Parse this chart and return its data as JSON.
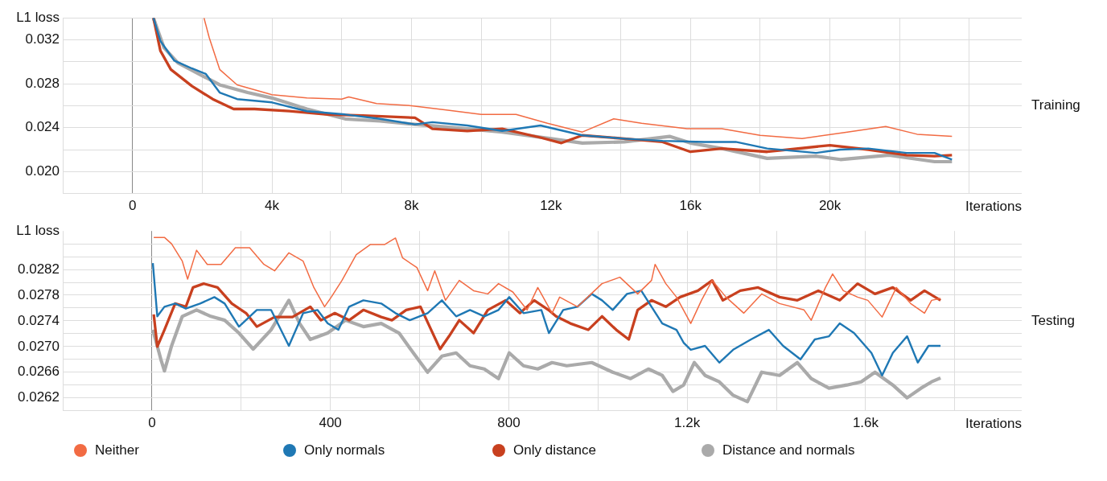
{
  "chart_data": [
    {
      "type": "line",
      "annotations": [
        "Training"
      ],
      "xlabel": "Iterations",
      "ylabel": "L1 loss",
      "grid": true,
      "legend": false,
      "xlim": [
        -2000,
        25500
      ],
      "ylim": [
        0.018,
        0.034
      ],
      "xticks": [
        {
          "value": -2000,
          "label": null
        },
        0,
        {
          "value": 2000,
          "label": null
        },
        {
          "value": 4000,
          "label": "4k"
        },
        {
          "value": 6000,
          "label": null
        },
        {
          "value": 8000,
          "label": "8k"
        },
        {
          "value": 10000,
          "label": null
        },
        {
          "value": 12000,
          "label": "12k"
        },
        {
          "value": 14000,
          "label": null
        },
        {
          "value": 16000,
          "label": "16k"
        },
        {
          "value": 18000,
          "label": null
        },
        {
          "value": 20000,
          "label": "20k"
        },
        {
          "value": 22000,
          "label": null
        },
        {
          "value": 24000,
          "label": null
        }
      ],
      "yticks": [
        {
          "value": 0.018,
          "label": null
        },
        {
          "value": 0.02,
          "label": "0.020"
        },
        {
          "value": 0.022,
          "label": null
        },
        0.024,
        {
          "value": 0.026,
          "label": null
        },
        0.028,
        {
          "value": 0.03,
          "label": null
        },
        0.032,
        {
          "value": 0.034,
          "label": null
        }
      ],
      "series": [
        {
          "color": "#f26b43",
          "x": [
            2050,
            2200,
            2500,
            3000,
            4000,
            5000,
            6000,
            6200,
            7000,
            8000,
            9000,
            10000,
            11000,
            11900,
            12900,
            13800,
            14600,
            15900,
            16900,
            18000,
            19200,
            20500,
            21600,
            22500,
            23500
          ],
          "values": [
            0.034,
            0.0322,
            0.0293,
            0.0279,
            0.027,
            0.0267,
            0.0266,
            0.0268,
            0.0262,
            0.026,
            0.0256,
            0.0252,
            0.0252,
            0.0244,
            0.0236,
            0.0248,
            0.0244,
            0.0239,
            0.0239,
            0.0233,
            0.023,
            0.0236,
            0.0241,
            0.0234,
            0.0232
          ]
        },
        {
          "color": "#1f78b4",
          "x": [
            600,
            800,
            1200,
            1700,
            2100,
            2500,
            3000,
            4000,
            5000,
            6100,
            7100,
            8100,
            8600,
            9600,
            10600,
            11700,
            12900,
            14100,
            15200,
            16400,
            17300,
            18200,
            19600,
            20300,
            21100,
            22200,
            23000,
            23500
          ],
          "values": [
            0.034,
            0.0319,
            0.0301,
            0.0294,
            0.0289,
            0.0272,
            0.0266,
            0.0263,
            0.0255,
            0.0252,
            0.0248,
            0.0243,
            0.0245,
            0.0242,
            0.0237,
            0.0242,
            0.0233,
            0.023,
            0.0228,
            0.0227,
            0.0227,
            0.0221,
            0.0217,
            0.022,
            0.0221,
            0.0217,
            0.0217,
            0.0211
          ]
        },
        {
          "color": "#c8401f",
          "x": [
            600,
            800,
            1100,
            1700,
            2300,
            2900,
            3500,
            4500,
            5600,
            6600,
            8100,
            8600,
            9600,
            10600,
            11700,
            12300,
            12900,
            14100,
            15200,
            16000,
            16900,
            18200,
            20000,
            21100,
            22200,
            23000,
            23500
          ],
          "values": [
            0.034,
            0.031,
            0.0293,
            0.0278,
            0.0266,
            0.0257,
            0.0257,
            0.0255,
            0.0252,
            0.0251,
            0.0249,
            0.0239,
            0.0237,
            0.0239,
            0.0231,
            0.0226,
            0.0233,
            0.023,
            0.0227,
            0.0218,
            0.0221,
            0.0218,
            0.0224,
            0.022,
            0.0215,
            0.0214,
            0.0215
          ]
        },
        {
          "color": "#aaaaaa",
          "x": [
            600,
            900,
            1300,
            1900,
            2500,
            3300,
            4000,
            5000,
            6100,
            7100,
            8100,
            9600,
            10600,
            12000,
            12900,
            14100,
            15400,
            16000,
            16900,
            18200,
            19600,
            20300,
            21700,
            23000,
            23500
          ],
          "values": [
            0.034,
            0.0313,
            0.0299,
            0.0289,
            0.0279,
            0.0272,
            0.0267,
            0.0257,
            0.0248,
            0.0246,
            0.0243,
            0.0239,
            0.0236,
            0.023,
            0.0226,
            0.0227,
            0.0232,
            0.0226,
            0.0221,
            0.0212,
            0.0214,
            0.0211,
            0.0215,
            0.0209,
            0.0209
          ]
        }
      ]
    },
    {
      "type": "line",
      "annotations": [
        "Testing"
      ],
      "xlabel": "Iterations",
      "ylabel": "L1 loss",
      "grid": true,
      "legend": "bottom",
      "xlim": [
        -200,
        1950
      ],
      "ylim": [
        0.026,
        0.0288
      ],
      "xticks": [
        {
          "value": -200,
          "label": null
        },
        0,
        {
          "value": 200,
          "label": null
        },
        400,
        {
          "value": 600,
          "label": null
        },
        800,
        {
          "value": 1000,
          "label": null
        },
        {
          "value": 1200,
          "label": "1.2k"
        },
        {
          "value": 1400,
          "label": null
        },
        {
          "value": 1600,
          "label": "1.6k"
        },
        {
          "value": 1800,
          "label": null
        }
      ],
      "yticks": [
        {
          "value": 0.026,
          "label": null
        },
        0.0262,
        {
          "value": 0.0264,
          "label": null
        },
        0.0266,
        {
          "value": 0.0268,
          "label": null
        },
        {
          "value": 0.027,
          "label": "0.0270"
        },
        {
          "value": 0.0272,
          "label": null
        },
        0.0274,
        {
          "value": 0.0276,
          "label": null
        },
        0.0278,
        {
          "value": 0.028,
          "label": null
        },
        0.0282,
        {
          "value": 0.0284,
          "label": null
        },
        {
          "value": 0.0286,
          "label": null
        }
      ],
      "series": [
        {
          "name": "Neither",
          "color": "#f26b43",
          "x": [
            4,
            28,
            44,
            68,
            80,
            100,
            124,
            155,
            187,
            219,
            251,
            275,
            307,
            339,
            363,
            387,
            402,
            426,
            458,
            490,
            522,
            546,
            562,
            594,
            618,
            634,
            658,
            689,
            721,
            753,
            777,
            809,
            841,
            865,
            897,
            914,
            954,
            1009,
            1049,
            1089,
            1120,
            1128,
            1152,
            1176,
            1208,
            1232,
            1256,
            1287,
            1327,
            1367,
            1407,
            1462,
            1478,
            1510,
            1526,
            1550,
            1582,
            1605,
            1637,
            1669,
            1701,
            1732,
            1748,
            1768
          ],
          "values": [
            0.0287,
            0.0287,
            0.0286,
            0.02833,
            0.02805,
            0.0285,
            0.02828,
            0.02828,
            0.02854,
            0.02854,
            0.02828,
            0.02818,
            0.02846,
            0.02833,
            0.02792,
            0.02762,
            0.02777,
            0.02803,
            0.02843,
            0.02859,
            0.02859,
            0.02869,
            0.02838,
            0.02823,
            0.02787,
            0.02818,
            0.02772,
            0.02803,
            0.02787,
            0.02782,
            0.02798,
            0.02785,
            0.02757,
            0.02792,
            0.02752,
            0.02777,
            0.02762,
            0.02798,
            0.02808,
            0.02782,
            0.02803,
            0.02828,
            0.02798,
            0.02777,
            0.02736,
            0.02772,
            0.02803,
            0.02777,
            0.02752,
            0.02782,
            0.02767,
            0.02757,
            0.02741,
            0.02792,
            0.02813,
            0.02787,
            0.02777,
            0.02772,
            0.02746,
            0.02792,
            0.02767,
            0.02752,
            0.02772,
            0.02775
          ]
        },
        {
          "name": "Only normals",
          "color": "#1f78b4",
          "x": [
            2,
            12,
            28,
            52,
            76,
            108,
            140,
            163,
            195,
            235,
            267,
            307,
            339,
            371,
            394,
            418,
            442,
            474,
            514,
            546,
            578,
            618,
            650,
            682,
            713,
            745,
            777,
            801,
            833,
            873,
            890,
            922,
            954,
            986,
            1009,
            1033,
            1065,
            1097,
            1120,
            1144,
            1176,
            1192,
            1208,
            1240,
            1272,
            1303,
            1343,
            1383,
            1415,
            1454,
            1486,
            1518,
            1542,
            1574,
            1613,
            1637,
            1661,
            1693,
            1717,
            1741,
            1768
          ],
          "values": [
            0.0283,
            0.02747,
            0.02762,
            0.02767,
            0.02759,
            0.02767,
            0.02777,
            0.02767,
            0.02731,
            0.02757,
            0.02757,
            0.02701,
            0.02752,
            0.02757,
            0.02736,
            0.02726,
            0.02762,
            0.02772,
            0.02767,
            0.02752,
            0.02741,
            0.02752,
            0.02772,
            0.02747,
            0.02757,
            0.02747,
            0.02757,
            0.02777,
            0.02752,
            0.02757,
            0.02721,
            0.02757,
            0.02762,
            0.02782,
            0.02772,
            0.02757,
            0.02782,
            0.02787,
            0.02762,
            0.02736,
            0.02726,
            0.02706,
            0.02695,
            0.02701,
            0.02675,
            0.02695,
            0.02711,
            0.02726,
            0.02701,
            0.0268,
            0.02711,
            0.02716,
            0.02736,
            0.02721,
            0.0269,
            0.02655,
            0.0269,
            0.02716,
            0.02675,
            0.02701,
            0.02701
          ]
        },
        {
          "name": "Only distance",
          "color": "#c8401f",
          "x": [
            4,
            12,
            28,
            52,
            76,
            92,
            116,
            147,
            179,
            211,
            235,
            275,
            315,
            355,
            379,
            410,
            442,
            474,
            514,
            538,
            570,
            602,
            626,
            646,
            666,
            689,
            721,
            753,
            793,
            825,
            857,
            889,
            906,
            938,
            978,
            1009,
            1041,
            1069,
            1089,
            1120,
            1152,
            1184,
            1224,
            1256,
            1280,
            1319,
            1359,
            1407,
            1447,
            1494,
            1542,
            1582,
            1621,
            1661,
            1701,
            1732,
            1768
          ],
          "values": [
            0.0275,
            0.027,
            0.02726,
            0.02767,
            0.02762,
            0.02792,
            0.02798,
            0.02792,
            0.02767,
            0.02752,
            0.02731,
            0.02746,
            0.02746,
            0.02762,
            0.02741,
            0.02752,
            0.02741,
            0.02757,
            0.02746,
            0.02741,
            0.02757,
            0.02762,
            0.02726,
            0.02696,
            0.02716,
            0.02741,
            0.02721,
            0.02757,
            0.02772,
            0.02752,
            0.02772,
            0.02757,
            0.02747,
            0.02736,
            0.02726,
            0.02747,
            0.02726,
            0.02711,
            0.02757,
            0.02772,
            0.02762,
            0.02777,
            0.02787,
            0.02803,
            0.02772,
            0.02787,
            0.02792,
            0.02777,
            0.02772,
            0.02787,
            0.02772,
            0.02798,
            0.02782,
            0.02792,
            0.02772,
            0.02787,
            0.02772
          ]
        },
        {
          "name": "Distance and normals",
          "color": "#aaaaaa",
          "x": [
            2,
            20,
            28,
            44,
            68,
            100,
            132,
            163,
            195,
            227,
            267,
            307,
            331,
            355,
            394,
            434,
            474,
            514,
            554,
            586,
            618,
            650,
            682,
            713,
            745,
            777,
            801,
            833,
            865,
            897,
            930,
            986,
            1033,
            1073,
            1113,
            1144,
            1168,
            1192,
            1216,
            1240,
            1272,
            1303,
            1335,
            1367,
            1407,
            1447,
            1478,
            1518,
            1558,
            1590,
            1621,
            1661,
            1693,
            1724,
            1748,
            1768
          ],
          "values": [
            0.02726,
            0.0268,
            0.02662,
            0.02701,
            0.02747,
            0.02757,
            0.02747,
            0.02741,
            0.02721,
            0.02696,
            0.02726,
            0.02772,
            0.02736,
            0.02711,
            0.02721,
            0.02741,
            0.02731,
            0.02736,
            0.02721,
            0.0269,
            0.0266,
            0.02685,
            0.0269,
            0.0267,
            0.02665,
            0.0265,
            0.0269,
            0.0267,
            0.02665,
            0.02675,
            0.0267,
            0.02675,
            0.0266,
            0.0265,
            0.02665,
            0.02655,
            0.0263,
            0.0264,
            0.02675,
            0.02655,
            0.02645,
            0.02624,
            0.02614,
            0.0266,
            0.02655,
            0.02675,
            0.0265,
            0.02635,
            0.0264,
            0.02645,
            0.0266,
            0.0264,
            0.0262,
            0.02635,
            0.02645,
            0.02651
          ]
        }
      ]
    }
  ]
}
